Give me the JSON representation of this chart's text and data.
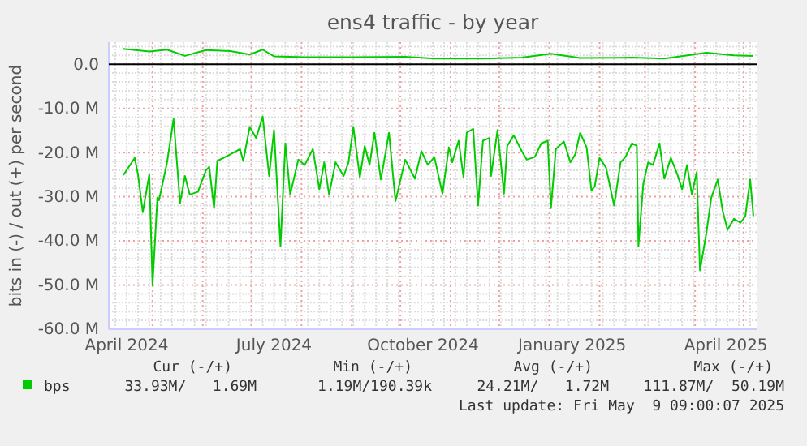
{
  "chart_data": {
    "type": "line",
    "title": "ens4 traffic - by year",
    "ylabel": "bits in (-) / out (+) per second",
    "xlim": [
      "2024-04-04",
      "2025-05-09"
    ],
    "ylim": [
      -60,
      5
    ],
    "xticks": [
      {
        "value": "2024-04-15",
        "label": "April 2024"
      },
      {
        "value": "2024-07-15",
        "label": "July 2024"
      },
      {
        "value": "2024-10-15",
        "label": "October 2024"
      },
      {
        "value": "2025-01-15",
        "label": "January 2025"
      },
      {
        "value": "2025-04-20",
        "label": "April 2025"
      }
    ],
    "yticks": [
      {
        "value": 0,
        "label": "0.0"
      },
      {
        "value": -10,
        "label": "-10.0 M"
      },
      {
        "value": -20,
        "label": "-20.0 M"
      },
      {
        "value": -30,
        "label": "-30.0 M"
      },
      {
        "value": -40,
        "label": "-40.0 M"
      },
      {
        "value": -50,
        "label": "-50.0 M"
      },
      {
        "value": -60,
        "label": "-60.0 M"
      }
    ],
    "grid": true,
    "legend": "bottom",
    "ref_lines": [
      {
        "axis": "y",
        "value": 0,
        "color": "#000000"
      }
    ],
    "series": [
      {
        "name": "bps",
        "color": "#00cc00",
        "x": [
          "2024-04-13",
          "2024-04-29",
          "2024-05-10",
          "2024-05-21",
          "2024-06-03",
          "2024-06-18",
          "2024-06-30",
          "2024-07-08",
          "2024-07-15",
          "2024-08-03",
          "2024-09-02",
          "2024-10-04",
          "2024-10-22",
          "2024-11-21",
          "2024-12-15",
          "2025-01-02",
          "2025-01-20",
          "2025-02-21",
          "2025-03-13",
          "2025-04-08",
          "2025-04-25",
          "2025-05-07"
        ],
        "values": [
          3.5,
          2.9,
          3.3,
          1.9,
          3.2,
          3.0,
          2.2,
          3.3,
          1.8,
          1.6,
          1.6,
          1.7,
          1.3,
          1.3,
          1.5,
          2.4,
          1.4,
          1.5,
          1.3,
          2.6,
          2.0,
          1.9
        ]
      },
      {
        "color": "#00cc00",
        "x": [
          "2024-04-13",
          "2024-04-20",
          "2024-04-22",
          "2024-04-25",
          "2024-04-29",
          "2024-05-01",
          "2024-05-04",
          "2024-05-05",
          "2024-05-10",
          "2024-05-14",
          "2024-05-18",
          "2024-05-21",
          "2024-05-24",
          "2024-05-29",
          "2024-06-03",
          "2024-06-05",
          "2024-06-08",
          "2024-06-10",
          "2024-06-18",
          "2024-06-24",
          "2024-06-26",
          "2024-06-30",
          "2024-07-04",
          "2024-07-08",
          "2024-07-12",
          "2024-07-15",
          "2024-07-19",
          "2024-07-22",
          "2024-07-25",
          "2024-07-30",
          "2024-08-03",
          "2024-08-08",
          "2024-08-12",
          "2024-08-15",
          "2024-08-18",
          "2024-08-22",
          "2024-08-27",
          "2024-08-30",
          "2024-09-02",
          "2024-09-06",
          "2024-09-09",
          "2024-09-12",
          "2024-09-15",
          "2024-09-19",
          "2024-09-24",
          "2024-09-28",
          "2024-10-04",
          "2024-10-10",
          "2024-10-14",
          "2024-10-18",
          "2024-10-22",
          "2024-10-27",
          "2024-10-31",
          "2024-11-02",
          "2024-11-06",
          "2024-11-09",
          "2024-11-11",
          "2024-11-15",
          "2024-11-18",
          "2024-11-21",
          "2024-11-25",
          "2024-11-26",
          "2024-11-30",
          "2024-12-04",
          "2024-12-06",
          "2024-12-10",
          "2024-12-15",
          "2024-12-18",
          "2024-12-23",
          "2024-12-27",
          "2024-12-31",
          "2025-01-02",
          "2025-01-05",
          "2025-01-10",
          "2025-01-14",
          "2025-01-17",
          "2025-01-20",
          "2025-01-24",
          "2025-01-27",
          "2025-01-29",
          "2025-02-01",
          "2025-02-05",
          "2025-02-10",
          "2025-02-14",
          "2025-02-17",
          "2025-02-21",
          "2025-02-24",
          "2025-02-25",
          "2025-02-28",
          "2025-03-03",
          "2025-03-06",
          "2025-03-10",
          "2025-03-13",
          "2025-03-17",
          "2025-03-21",
          "2025-03-24",
          "2025-03-27",
          "2025-03-30",
          "2025-04-02",
          "2025-04-04",
          "2025-04-08",
          "2025-04-11",
          "2025-04-15",
          "2025-04-18",
          "2025-04-21",
          "2025-04-25",
          "2025-04-29",
          "2025-05-02",
          "2025-05-05",
          "2025-05-07"
        ],
        "values": [
          -25.1,
          -21.2,
          -24.9,
          -33.5,
          -24.9,
          -50.1,
          -30.2,
          -30.8,
          -22.2,
          -12.4,
          -31.4,
          -25.3,
          -29.5,
          -28.9,
          -24.0,
          -23.2,
          -32.6,
          -21.9,
          -20.4,
          -19.2,
          -21.9,
          -14.2,
          -16.7,
          -11.8,
          -25.3,
          -14.9,
          -41.2,
          -17.9,
          -29.5,
          -21.6,
          -22.8,
          -19.2,
          -28.3,
          -22.2,
          -29.5,
          -22.2,
          -25.3,
          -22.2,
          -14.2,
          -25.6,
          -18.5,
          -22.8,
          -15.5,
          -26.1,
          -15.5,
          -31.0,
          -21.6,
          -25.9,
          -19.7,
          -22.8,
          -21.0,
          -29.3,
          -18.8,
          -22.2,
          -17.3,
          -25.6,
          -15.5,
          -14.6,
          -32.0,
          -17.3,
          -16.7,
          -25.3,
          -14.9,
          -29.3,
          -18.5,
          -16.1,
          -19.7,
          -21.6,
          -21.0,
          -17.9,
          -17.3,
          -32.6,
          -19.2,
          -17.5,
          -22.2,
          -20.4,
          -15.5,
          -18.8,
          -28.6,
          -27.7,
          -21.2,
          -23.4,
          -32.0,
          -22.2,
          -21.0,
          -17.9,
          -18.5,
          -41.2,
          -27.1,
          -22.2,
          -22.8,
          -17.9,
          -25.9,
          -21.2,
          -24.9,
          -28.3,
          -22.8,
          -29.5,
          -24.4,
          -46.7,
          -38.1,
          -30.2,
          -26.1,
          -33.2,
          -37.5,
          -35.0,
          -35.9,
          -34.4,
          -26.1,
          -34.4
        ]
      }
    ],
    "annotations": [
      "Cur (-/+)",
      "Min (-/+)",
      "Avg (-/+)",
      "Max (-/+)",
      "33.93M/   1.69M",
      "1.19M/190.39k",
      "24.21M/   1.72M",
      "111.87M/  50.19M",
      "Last update: Fri May  9 09:00:07 2025"
    ]
  }
}
